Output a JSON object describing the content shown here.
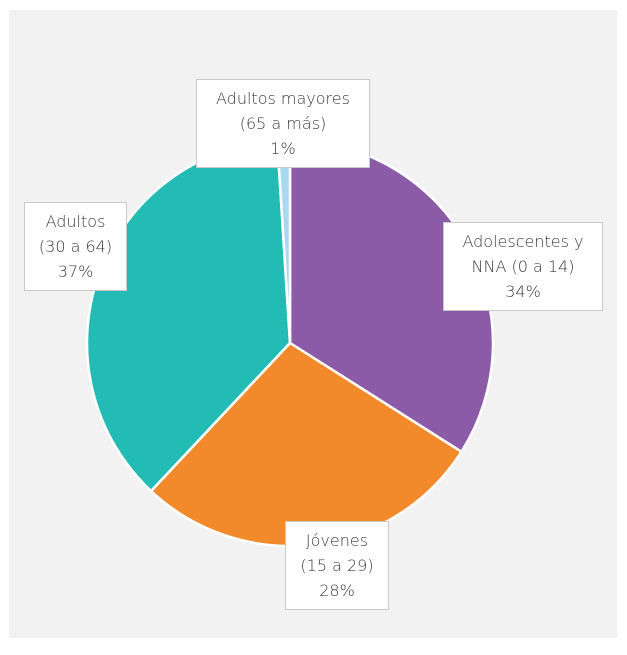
{
  "chart_data": {
    "type": "pie",
    "categories": [
      "Adolescentes y NNA (0 a 14)",
      "Jóvenes (15 a 29)",
      "Adultos (30 a 64)",
      "Adultos mayores (65 a más)"
    ],
    "values": [
      34,
      28,
      37,
      1
    ],
    "value_labels": [
      "34%",
      "28%",
      "37%",
      "1%"
    ],
    "colors": [
      "#8c5ba8",
      "#f2892a",
      "#22bcb4",
      "#a9d9f2"
    ]
  }
}
